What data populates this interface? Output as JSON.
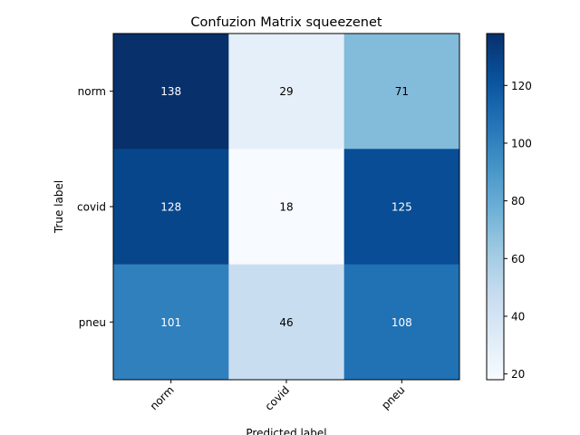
{
  "chart_data": {
    "type": "heatmap",
    "title": "Confuzion Matrix squeezenet",
    "xlabel": "Predicted label",
    "ylabel": "True label",
    "x_categories": [
      "norm",
      "covid",
      "pneu"
    ],
    "y_categories": [
      "norm",
      "covid",
      "pneu"
    ],
    "values": [
      [
        138,
        29,
        71
      ],
      [
        128,
        18,
        125
      ],
      [
        101,
        46,
        108
      ]
    ],
    "colormap": "Blues",
    "colorbar": {
      "range": [
        18,
        138
      ],
      "ticks": [
        20,
        40,
        60,
        80,
        100,
        120
      ]
    },
    "grid": false
  }
}
